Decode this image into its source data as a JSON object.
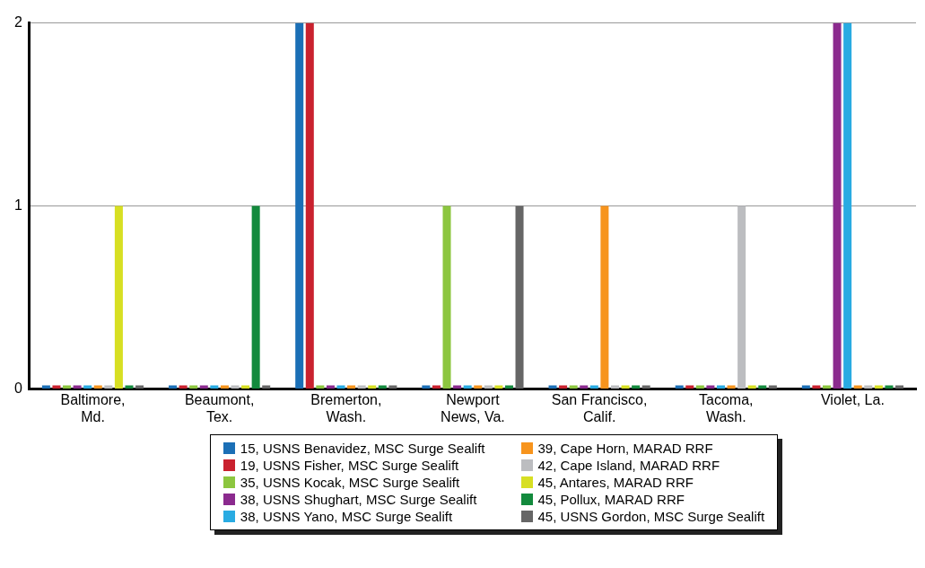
{
  "chart_data": {
    "type": "bar",
    "categories": [
      "Baltimore,\nMd.",
      "Beaumont,\nTex.",
      "Bremerton,\nWash.",
      "Newport\nNews, Va.",
      "San Francisco,\nCalif.",
      "Tacoma,\nWash.",
      "Violet, La."
    ],
    "series": [
      {
        "name": "15, USNS Benavidez, MSC Surge Sealift",
        "color": "#1b6fb6",
        "values": [
          0.02,
          0.02,
          2,
          0.02,
          0.02,
          0.02,
          0.02
        ]
      },
      {
        "name": "19, USNS Fisher, MSC Surge Sealift",
        "color": "#c9212e",
        "values": [
          0.02,
          0.02,
          2,
          0.02,
          0.02,
          0.02,
          0.02
        ]
      },
      {
        "name": "35, USNS Kocak, MSC Surge Sealift",
        "color": "#8cc63f",
        "values": [
          0.02,
          0.02,
          0.02,
          1,
          0.02,
          0.02,
          0.02
        ]
      },
      {
        "name": "38, USNS Shughart, MSC Surge Sealift",
        "color": "#8b2a8e",
        "values": [
          0.02,
          0.02,
          0.02,
          0.02,
          0.02,
          0.02,
          2
        ]
      },
      {
        "name": "38, USNS Yano, MSC Surge Sealift",
        "color": "#29abe2",
        "values": [
          0.02,
          0.02,
          0.02,
          0.02,
          0.02,
          0.02,
          2
        ]
      },
      {
        "name": "39, Cape Horn, MARAD RRF",
        "color": "#f7941d",
        "values": [
          0.02,
          0.02,
          0.02,
          0.02,
          1,
          0.02,
          0.02
        ]
      },
      {
        "name": "42, Cape Island, MARAD RRF",
        "color": "#bcbdc0",
        "values": [
          0.02,
          0.02,
          0.02,
          0.02,
          0.02,
          1,
          0.02
        ]
      },
      {
        "name": "45, Antares, MARAD RRF",
        "color": "#d7df23",
        "values": [
          1,
          0.02,
          0.02,
          0.02,
          0.02,
          0.02,
          0.02
        ]
      },
      {
        "name": "45, Pollux, MARAD RRF",
        "color": "#138a3d",
        "values": [
          0.02,
          1,
          0.02,
          0.02,
          0.02,
          0.02,
          0.02
        ]
      },
      {
        "name": "45, USNS Gordon, MSC Surge Sealift",
        "color": "#666666",
        "values": [
          0.02,
          0.02,
          0.02,
          1,
          0.02,
          0.02,
          0.02
        ]
      }
    ],
    "ylim": [
      0,
      2
    ],
    "yticks": [
      0,
      1,
      2
    ],
    "grid": "y",
    "legend": "bottom"
  }
}
